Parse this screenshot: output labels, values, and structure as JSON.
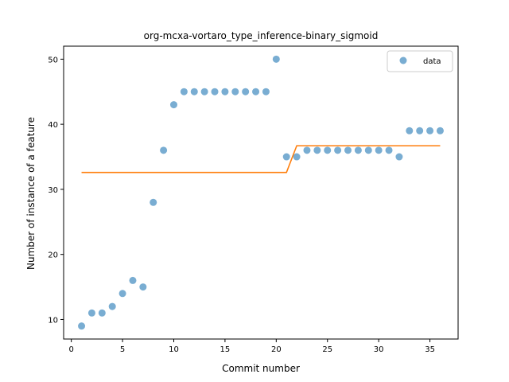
{
  "chart_data": {
    "type": "scatter",
    "title": "org-mcxa-vortaro_type_inference-binary_sigmoid",
    "xlabel": "Commit number",
    "ylabel": "Number of instance of a feature",
    "xlim": [
      -0.75,
      37.75
    ],
    "ylim": [
      7.0,
      52.0
    ],
    "xticks": [
      0,
      5,
      10,
      15,
      20,
      25,
      30,
      35
    ],
    "yticks": [
      10,
      20,
      30,
      40,
      50
    ],
    "grid": false,
    "legend": {
      "position": "top-right",
      "entries": [
        "data"
      ]
    },
    "series": [
      {
        "name": "data",
        "kind": "scatter",
        "color": "#1f77b4",
        "x": [
          1,
          2,
          3,
          4,
          5,
          6,
          7,
          8,
          9,
          10,
          11,
          12,
          13,
          14,
          15,
          16,
          17,
          18,
          19,
          20,
          21,
          22,
          23,
          24,
          25,
          26,
          27,
          28,
          29,
          30,
          31,
          32,
          33,
          34,
          35,
          36
        ],
        "y": [
          9,
          11,
          11,
          12,
          14,
          16,
          15,
          28,
          36,
          43,
          45,
          45,
          45,
          45,
          45,
          45,
          45,
          45,
          45,
          50,
          35,
          35,
          36,
          36,
          36,
          36,
          36,
          36,
          36,
          36,
          36,
          35,
          39,
          39,
          39,
          39
        ]
      },
      {
        "kind": "line",
        "color": "#ff7f0e",
        "x": [
          1,
          21,
          22,
          36
        ],
        "y": [
          32.6,
          32.6,
          36.7,
          36.7
        ]
      }
    ]
  }
}
